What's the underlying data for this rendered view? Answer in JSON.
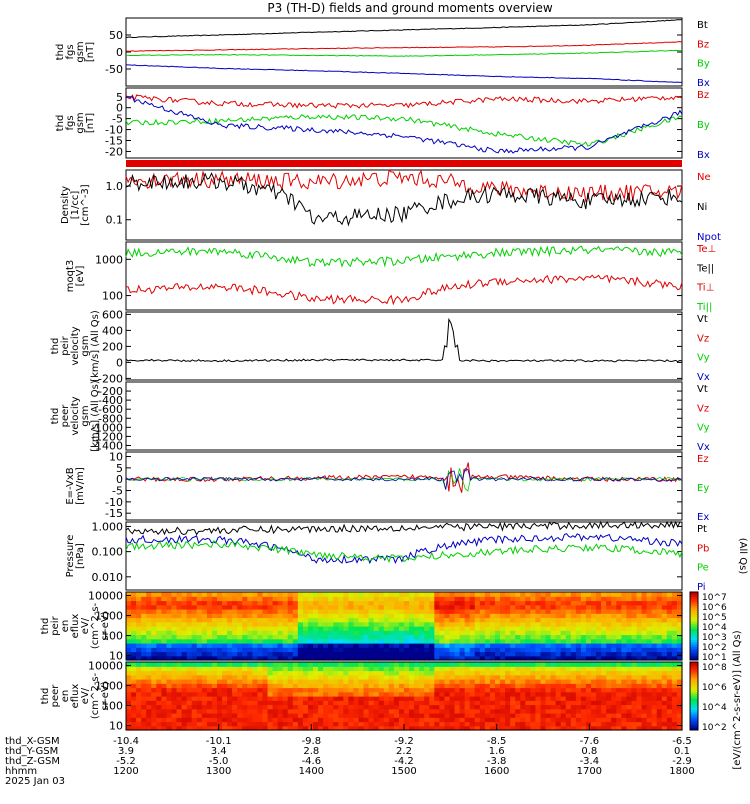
{
  "title": "P3 (TH-D) fields and ground moments overview",
  "colors": {
    "black": "#000000",
    "red": "#e00000",
    "green": "#00d000",
    "blue": "#0000c0"
  },
  "panels": [
    {
      "id": "fgs_btotal",
      "ylabel": [
        "thd",
        "fgs",
        "gsm",
        "[nT]"
      ],
      "ylim": [
        -100,
        100
      ],
      "ticks": [
        "50",
        "0",
        "-50"
      ],
      "tickvals": [
        50,
        0,
        -50
      ],
      "legend": [
        {
          "t": "Bt",
          "c": "black"
        },
        {
          "t": "Bz",
          "c": "red"
        },
        {
          "t": "By",
          "c": "green"
        },
        {
          "t": "Bx",
          "c": "blue"
        }
      ]
    },
    {
      "id": "fgs_b",
      "ylabel": [
        "thd",
        "fgs",
        "gsm",
        "[nT]"
      ],
      "ylim": [
        -23,
        9
      ],
      "ticks": [
        "5",
        "0",
        "-5",
        "-10",
        "-15",
        "-20"
      ],
      "tickvals": [
        5,
        0,
        -5,
        -10,
        -15,
        -20
      ],
      "legend": [
        {
          "t": "Bz",
          "c": "red"
        },
        {
          "t": "By",
          "c": "green"
        },
        {
          "t": "Bx",
          "c": "blue"
        }
      ]
    },
    {
      "id": "density",
      "ylabel": [
        "Density",
        "[1/cc]",
        "[cm^-3]"
      ],
      "ylim": [
        0.025,
        3
      ],
      "log": true,
      "ticks": [
        "1.0",
        "0.1"
      ],
      "tickvals": [
        1,
        0.1
      ],
      "legend": [
        {
          "t": "Ne",
          "c": "red"
        },
        {
          "t": "Ni",
          "c": "black"
        },
        {
          "t": "Npot",
          "c": "blue"
        }
      ]
    },
    {
      "id": "temp",
      "ylabel": [
        "moqt3",
        "[eV]"
      ],
      "ylim": [
        40,
        3000
      ],
      "log": true,
      "ticks": [
        "1000",
        "100"
      ],
      "tickvals": [
        1000,
        100
      ],
      "legend": [
        {
          "t": "Te⊥",
          "c": "red"
        },
        {
          "t": "Te||",
          "c": "black"
        },
        {
          "t": "Ti⊥",
          "c": "red"
        },
        {
          "t": "Ti||",
          "c": "green"
        }
      ]
    },
    {
      "id": "peir_vel",
      "ylabel": [
        "thd",
        "peir",
        "velocity",
        "gsm",
        "[km/s] (All Qs)"
      ],
      "ylim": [
        -220,
        630
      ],
      "ticks": [
        "600",
        "400",
        "200",
        "0",
        "-200"
      ],
      "tickvals": [
        600,
        400,
        200,
        0,
        -200
      ],
      "legend": [
        {
          "t": "Vt",
          "c": "black"
        },
        {
          "t": "Vz",
          "c": "red"
        },
        {
          "t": "Vy",
          "c": "green"
        },
        {
          "t": "Vx",
          "c": "blue"
        }
      ]
    },
    {
      "id": "peer_vel",
      "ylabel": [
        "thd",
        "peer",
        "velocity",
        "gsm",
        "[km/s] (All Qs)"
      ],
      "ylim": [
        -1500,
        0
      ],
      "ticks": [
        "-200",
        "-400",
        "-600",
        "-800",
        "-1000",
        "-1200",
        "-1400"
      ],
      "tickvals": [
        -200,
        -400,
        -600,
        -800,
        -1000,
        -1200,
        -1400
      ],
      "legend": [
        {
          "t": "Vt",
          "c": "black"
        },
        {
          "t": "Vz",
          "c": "red"
        },
        {
          "t": "Vy",
          "c": "green"
        },
        {
          "t": "Vx",
          "c": "blue"
        }
      ]
    },
    {
      "id": "efield",
      "ylabel": [
        "E=-VxB",
        "[mV/m]"
      ],
      "ylim": [
        -18,
        12
      ],
      "ticks": [
        "10",
        "5",
        "0",
        "-5",
        "-10",
        "-15"
      ],
      "tickvals": [
        10,
        5,
        0,
        -5,
        -10,
        -15
      ],
      "legend": [
        {
          "t": "Ez",
          "c": "red"
        },
        {
          "t": "Ey",
          "c": "green"
        },
        {
          "t": "Ex",
          "c": "blue"
        }
      ]
    },
    {
      "id": "pressure",
      "ylabel": [
        "Pressure",
        "[nPa]"
      ],
      "ylim": [
        0.003,
        1.5
      ],
      "log": true,
      "ticks": [
        "1.000",
        "0.100",
        "0.010"
      ],
      "tickvals": [
        1,
        0.1,
        0.01
      ],
      "legend": [
        {
          "t": "Pt",
          "c": "black"
        },
        {
          "t": "Pb",
          "c": "red"
        },
        {
          "t": "Pe",
          "c": "green"
        },
        {
          "t": "Pi",
          "c": "blue"
        }
      ],
      "side": "(All Qs)"
    },
    {
      "id": "peir_spec",
      "ylabel": [
        "thd",
        "peir",
        "en",
        "eflux",
        "eV/",
        "(cm^2-s-",
        "sr-eV)"
      ],
      "ylim": [
        6,
        15000
      ],
      "log": true,
      "ticks": [
        "10000",
        "1000",
        "100",
        "10"
      ],
      "tickvals": [
        10000,
        1000,
        100,
        10
      ]
    },
    {
      "id": "peer_spec",
      "ylabel": [
        "thd",
        "peer",
        "en",
        "eflux",
        "eV/",
        "(cm^2-s-",
        "sr-eV)"
      ],
      "ylim": [
        6,
        15000
      ],
      "log": true,
      "ticks": [
        "10000",
        "1000",
        "100",
        "10"
      ],
      "tickvals": [
        10000,
        1000,
        100,
        10
      ]
    }
  ],
  "colorbars": [
    {
      "labels": [
        "10^7",
        "10^6",
        "10^5",
        "10^4",
        "10^3",
        "10^2",
        "10^1"
      ]
    },
    {
      "labels": [
        "10^8",
        "10^6",
        "10^4",
        "10^2"
      ]
    }
  ],
  "colorbar_title": "[eV/(cm^2-s-sr-eV)] (All Qs)",
  "xaxis": {
    "rows": [
      {
        "label": "thd_X-GSM",
        "values": [
          "-10.4",
          "-10.1",
          "-9.8",
          "-9.2",
          "-8.5",
          "-7.6",
          "-6.5"
        ]
      },
      {
        "label": "thd_Y-GSM",
        "values": [
          "3.9",
          "3.4",
          "2.8",
          "2.2",
          "1.6",
          "0.8",
          "0.1"
        ]
      },
      {
        "label": "thd_Z-GSM",
        "values": [
          "-5.2",
          "-5.0",
          "-4.6",
          "-4.2",
          "-3.8",
          "-3.4",
          "-2.9"
        ]
      },
      {
        "label": "hhmm",
        "values": [
          "1200",
          "1300",
          "1400",
          "1500",
          "1600",
          "1700",
          "1800"
        ]
      }
    ],
    "date": "2025 Jan 03"
  },
  "chart_data": {
    "type": "line",
    "title": "P3 (TH-D) fields and ground moments overview",
    "time_range": [
      "1200",
      "1800"
    ],
    "x": [
      "1200",
      "1300",
      "1400",
      "1500",
      "1600",
      "1700",
      "1800"
    ],
    "series": [
      {
        "name": "Bt",
        "panel": "fgs_btotal",
        "values": [
          43,
          50,
          58,
          65,
          72,
          80,
          95
        ]
      },
      {
        "name": "Bz",
        "panel": "fgs_btotal",
        "values": [
          3,
          6,
          10,
          13,
          15,
          20,
          30
        ]
      },
      {
        "name": "By",
        "panel": "fgs_btotal",
        "values": [
          -10,
          -8,
          -10,
          -12,
          -8,
          -3,
          5
        ]
      },
      {
        "name": "Bx",
        "panel": "fgs_btotal",
        "values": [
          -38,
          -48,
          -55,
          -63,
          -72,
          -78,
          -90
        ]
      },
      {
        "name": "Bz",
        "panel": "fgs_b",
        "values": [
          5,
          2,
          1,
          1,
          4,
          3,
          5
        ]
      },
      {
        "name": "By",
        "panel": "fgs_b",
        "values": [
          -7,
          -6,
          -4,
          -5,
          -12,
          -17,
          -4
        ]
      },
      {
        "name": "Bx",
        "panel": "fgs_b",
        "values": [
          5,
          -8,
          -10,
          -13,
          -20,
          -18,
          -2
        ]
      },
      {
        "name": "Ne",
        "panel": "density",
        "values": [
          1.5,
          1.6,
          1.3,
          1.8,
          0.8,
          0.6,
          0.7
        ]
      },
      {
        "name": "Ni",
        "panel": "density",
        "values": [
          1.3,
          1.4,
          0.1,
          0.15,
          0.6,
          0.35,
          0.5
        ]
      },
      {
        "name": "Te⊥",
        "panel": "temp",
        "values": [
          140,
          180,
          80,
          75,
          250,
          300,
          180
        ]
      },
      {
        "name": "Ti||",
        "panel": "temp",
        "values": [
          1500,
          1700,
          800,
          900,
          1500,
          1800,
          1500
        ]
      },
      {
        "name": "Vt",
        "panel": "peir_vel",
        "values": [
          30,
          20,
          30,
          30,
          20,
          20,
          20
        ]
      },
      {
        "name": "Ez",
        "panel": "efield",
        "values": [
          0,
          0,
          0.5,
          1,
          1,
          0,
          0
        ]
      },
      {
        "name": "Pt",
        "panel": "pressure",
        "values": [
          0.6,
          0.7,
          0.8,
          0.9,
          1.0,
          1.1,
          1.2
        ]
      },
      {
        "name": "Pi",
        "panel": "pressure",
        "values": [
          0.3,
          0.3,
          0.05,
          0.05,
          0.3,
          0.4,
          0.2
        ]
      },
      {
        "name": "Pe",
        "panel": "pressure",
        "values": [
          0.15,
          0.2,
          0.08,
          0.05,
          0.1,
          0.15,
          0.08
        ]
      }
    ]
  }
}
